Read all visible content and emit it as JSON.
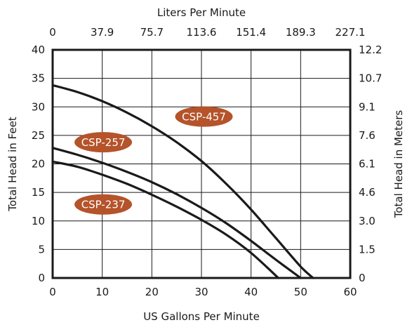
{
  "chart_data": {
    "type": "line",
    "top_axis_label": "Liters Per Minute",
    "xlabel": "US Gallons Per Minute",
    "ylabel_left": "Total Head in Feet",
    "ylabel_right": "Total Head in Meters",
    "xlim": [
      0,
      60
    ],
    "ylim": [
      0,
      40
    ],
    "x_ticks": [
      0,
      10,
      20,
      30,
      40,
      50,
      60
    ],
    "y_ticks": [
      0,
      5,
      10,
      15,
      20,
      25,
      30,
      35,
      40
    ],
    "top_tick_labels": [
      "0",
      "37.9",
      "75.7",
      "113.6",
      "151.4",
      "189.3",
      "227.1"
    ],
    "right_tick_labels": [
      "0",
      "1.5",
      "3.0",
      "4.6",
      "6.1",
      "7.6",
      "9.1",
      "10.7",
      "12.2"
    ],
    "grid": true,
    "series": [
      {
        "name": "CSP-457",
        "x": [
          0,
          5,
          10,
          15,
          20,
          25,
          30,
          35,
          40,
          45,
          50,
          52.5
        ],
        "y": [
          33.8,
          32.6,
          31.0,
          29.0,
          26.6,
          23.8,
          20.5,
          16.5,
          12.0,
          7.0,
          2.0,
          0
        ]
      },
      {
        "name": "CSP-257",
        "x": [
          0,
          5,
          10,
          15,
          20,
          25,
          30,
          35,
          40,
          45,
          50
        ],
        "y": [
          22.8,
          21.6,
          20.2,
          18.6,
          16.8,
          14.7,
          12.3,
          9.6,
          6.5,
          3.2,
          0
        ]
      },
      {
        "name": "CSP-237",
        "x": [
          0,
          5,
          10,
          15,
          20,
          25,
          30,
          35,
          40,
          45.5
        ],
        "y": [
          20.4,
          19.5,
          18.1,
          16.5,
          14.6,
          12.5,
          10.2,
          7.6,
          4.4,
          0
        ]
      }
    ],
    "annotations": [
      {
        "label": "CSP-457",
        "x": 30.5,
        "y": 28.3,
        "color": "#b5532a"
      },
      {
        "label": "CSP-257",
        "x": 10.2,
        "y": 23.8,
        "color": "#b5532a"
      },
      {
        "label": "CSP-237",
        "x": 10.2,
        "y": 12.9,
        "color": "#b5532a"
      }
    ],
    "line_color": "#1a1a1a",
    "grid_color": "#1a1a1a"
  }
}
